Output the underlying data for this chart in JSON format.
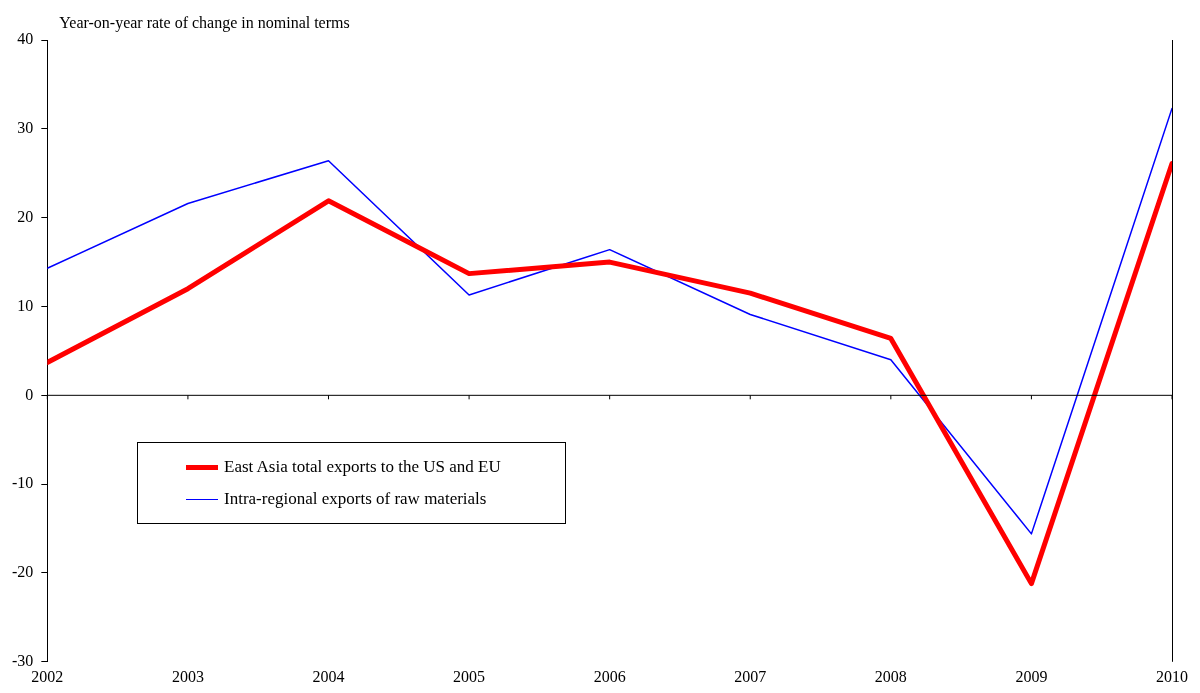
{
  "chart_data": {
    "type": "line",
    "ylabel": "Year-on-year rate of change in nominal terms",
    "x": [
      2002,
      2003,
      2004,
      2005,
      2006,
      2007,
      2008,
      2009,
      2010
    ],
    "series": [
      {
        "name": "East Asia total exports to the US and EU",
        "color": "#ff0000",
        "values": [
          3.7,
          12.0,
          21.9,
          13.7,
          15.0,
          11.5,
          6.4,
          -21.2,
          26.1
        ]
      },
      {
        "name": "Intra-regional exports of raw materials",
        "color": "#0000ff",
        "values": [
          14.3,
          21.6,
          26.4,
          11.3,
          16.4,
          9.1,
          4.0,
          -15.6,
          32.3
        ]
      }
    ],
    "xlim": [
      2002,
      2010
    ],
    "xticks": [
      2002,
      2003,
      2004,
      2005,
      2006,
      2007,
      2008,
      2009,
      2010
    ],
    "ylim": [
      -30,
      40
    ],
    "yticks": [
      -30,
      -20,
      -10,
      0,
      10,
      20,
      30,
      40
    ],
    "ref_lines": [
      {
        "axis": "y",
        "value": 0,
        "color": "#000000",
        "line_style": "solid"
      }
    ],
    "grid": false,
    "legend": "left",
    "marker": "none",
    "line_style": "solid"
  }
}
